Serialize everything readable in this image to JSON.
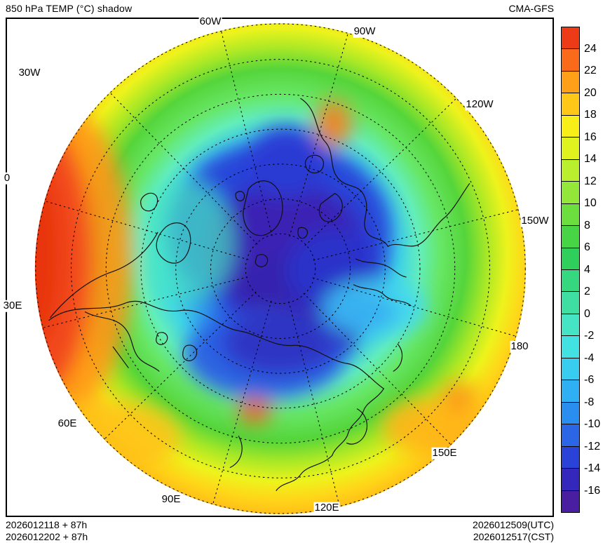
{
  "header": {
    "title": "850 hPa TEMP (°C) shadow",
    "model": "CMA-GFS"
  },
  "map": {
    "lon_labels": [
      "60W",
      "90W",
      "120W",
      "150W",
      "180",
      "150E",
      "120E",
      "90E",
      "60E",
      "30E",
      "0",
      "30W"
    ]
  },
  "colorbar": {
    "units": "°C",
    "ticks": [
      "24",
      "22",
      "20",
      "18",
      "16",
      "14",
      "12",
      "10",
      "8",
      "6",
      "4",
      "2",
      "0",
      "-2",
      "-4",
      "-6",
      "-8",
      "-10",
      "-12",
      "-14",
      "-16"
    ],
    "band_colors": [
      "#ee3b17",
      "#fa6a1b",
      "#ffa018",
      "#ffc818",
      "#f8ef19",
      "#dff41f",
      "#b9ef2d",
      "#93e738",
      "#6cdf3f",
      "#47d545",
      "#2fcf5c",
      "#35d77f",
      "#3fdfa3",
      "#45e4c4",
      "#43e2e2",
      "#38cdf0",
      "#2fb0f5",
      "#2a8ef0",
      "#2a66e6",
      "#2b42d8",
      "#3327bc",
      "#4a1ea0"
    ]
  },
  "footer": {
    "init_line1": "2026012118 + 87h",
    "init_line2": "2026012202 + 87h",
    "valid_utc": "2026012509(UTC)",
    "valid_cst": "2026012517(CST)"
  }
}
